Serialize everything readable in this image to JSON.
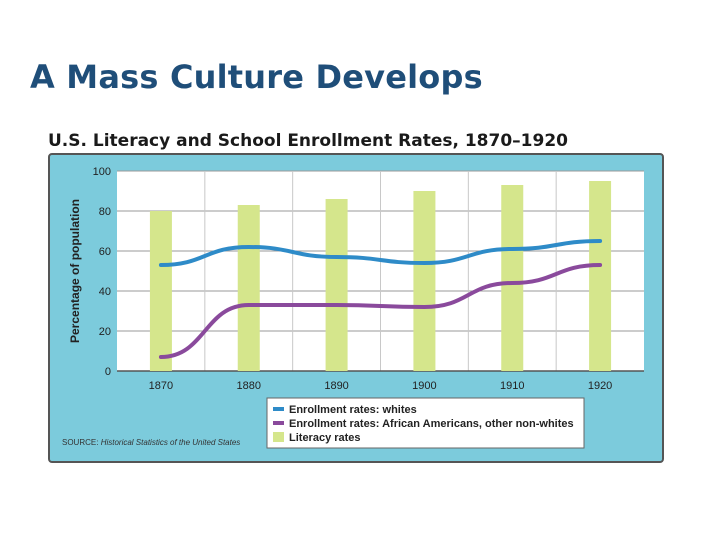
{
  "slide": {
    "title": "A Mass Culture Develops"
  },
  "colors": {
    "panel": "#7ccbdc",
    "panel_border": "#555555",
    "plot_bg": "#ffffff",
    "grid": "#9a9a9a",
    "whites": "#2e8bc8",
    "nonwhites": "#8a4a9c",
    "literacy": "#d5e68c",
    "legend_bg": "#ffffff"
  },
  "chart_data": {
    "type": "bar",
    "title": "U.S. Literacy and School Enrollment Rates, 1870–1920",
    "ylabel": "Percentage of population",
    "xlabel": "",
    "ylim": [
      0,
      100
    ],
    "yticks": [
      "0",
      "20",
      "40",
      "60",
      "80",
      "100"
    ],
    "categories": [
      "1870",
      "1880",
      "1890",
      "1900",
      "1910",
      "1920"
    ],
    "series": [
      {
        "name": "Enrollment rates: whites",
        "type": "line",
        "color_key": "whites",
        "values": [
          53,
          62,
          57,
          54,
          61,
          65
        ]
      },
      {
        "name": "Enrollment rates: African Americans, other non-whites",
        "type": "line",
        "color_key": "nonwhites",
        "values": [
          7,
          33,
          33,
          32,
          44,
          53
        ]
      },
      {
        "name": "Literacy rates",
        "type": "bar",
        "color_key": "literacy",
        "values": [
          80,
          83,
          86,
          90,
          93,
          95
        ]
      }
    ],
    "grid": true,
    "legend_position": "bottom-center",
    "source_label": "SOURCE:",
    "source_text": "Historical Statistics of the United States"
  }
}
